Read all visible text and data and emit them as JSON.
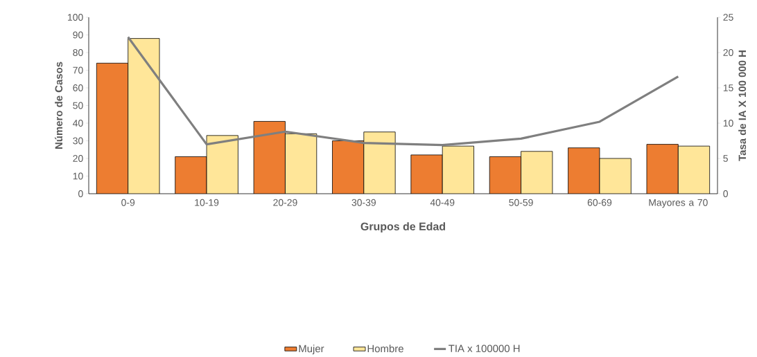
{
  "chart_data": {
    "type": "bar",
    "xlabel": "Grupos de Edad",
    "ylabel": "Número de Casos",
    "y2label": "Tasa de IA X 100 000 H",
    "categories": [
      "0-9",
      "10-19",
      "20-29",
      "30-39",
      "40-49",
      "50-59",
      "60-69",
      "Mayores a 70"
    ],
    "series": [
      {
        "name": "Mujer",
        "color": "#ed7d31",
        "values": [
          74,
          21,
          41,
          30,
          22,
          21,
          26,
          28
        ]
      },
      {
        "name": "Hombre",
        "color": "#ffe699",
        "values": [
          88,
          33,
          34,
          35,
          27,
          24,
          20,
          27
        ]
      },
      {
        "name": "TIA x 100000 H",
        "type": "line",
        "axis": "y2",
        "color": "#7f7f7f",
        "values": [
          22.2,
          7,
          8.8,
          7.2,
          6.9,
          7.8,
          10.2,
          16.6
        ]
      }
    ],
    "ylim": [
      0,
      100
    ],
    "yticks": [
      0,
      10,
      20,
      30,
      40,
      50,
      60,
      70,
      80,
      90,
      100
    ],
    "y2lim": [
      0,
      25
    ],
    "y2ticks": [
      0,
      5,
      10,
      15,
      20,
      25
    ],
    "legend": "bottom"
  }
}
